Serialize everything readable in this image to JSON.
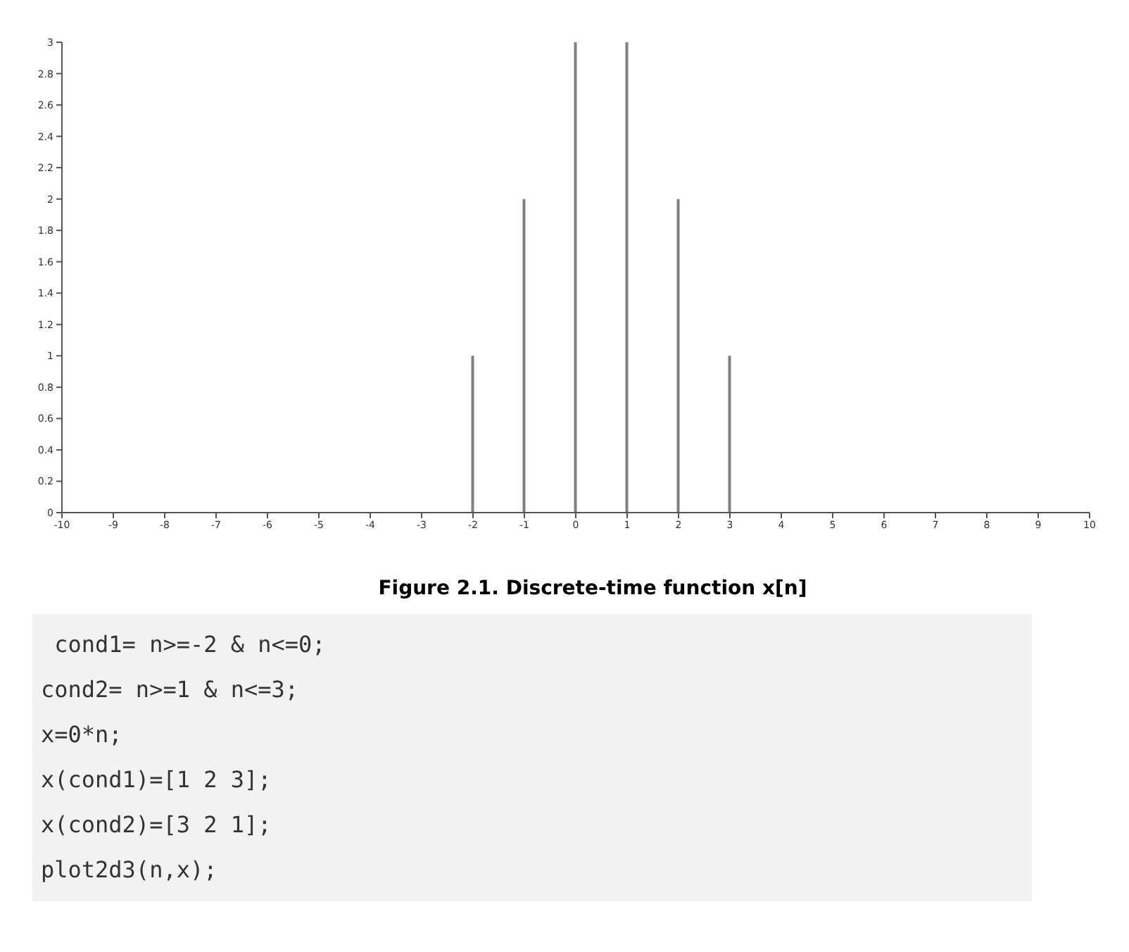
{
  "chart_data": {
    "type": "bar",
    "x": [
      -2,
      -1,
      0,
      1,
      2,
      3
    ],
    "values": [
      1,
      2,
      3,
      3,
      2,
      1
    ],
    "color": "#808080",
    "xlim": [
      -10,
      10
    ],
    "xticks": [
      -10,
      -9,
      -8,
      -7,
      -6,
      -5,
      -4,
      -3,
      -2,
      -1,
      0,
      1,
      2,
      3,
      4,
      5,
      6,
      7,
      8,
      9,
      10
    ],
    "ylim": [
      0,
      3
    ],
    "yticks": [
      0,
      0.2,
      0.4,
      0.6,
      0.8,
      1,
      1.2,
      1.4,
      1.6,
      1.8,
      2,
      2.2,
      2.4,
      2.6,
      2.8,
      3
    ],
    "grid": false,
    "legend": false,
    "annotations": [
      "Figure 2.1. Discrete-time function x[n]",
      " cond1= n>=-2 & n<=0;",
      "cond2= n>=1 & n<=3;",
      "x=0*n;",
      "x(cond1)=[1 2 3];",
      "x(cond2)=[3 2 1];",
      "plot2d3(n,x);"
    ]
  }
}
